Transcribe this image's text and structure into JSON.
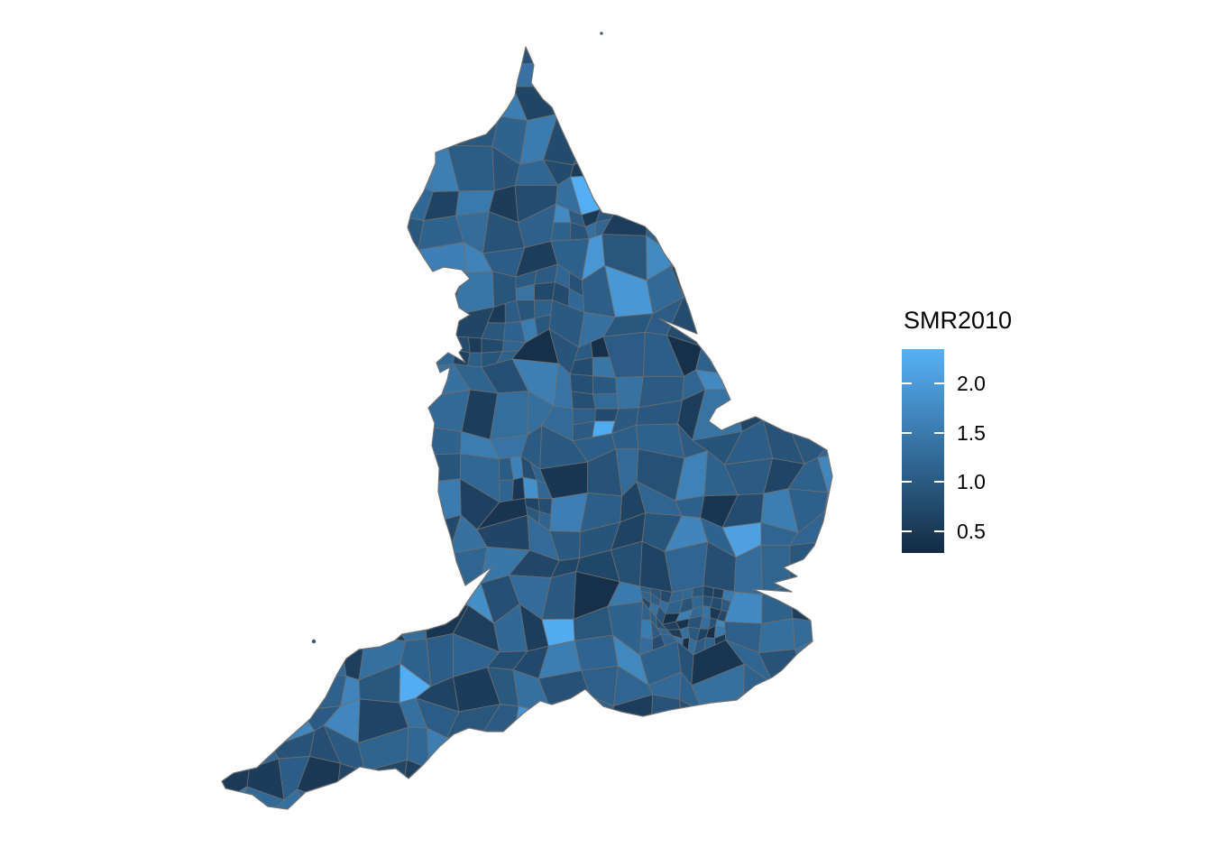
{
  "figure": {
    "background_color": "#FFFFFF",
    "plot_type": "choropleth map",
    "region": "England local authority districts"
  },
  "legend": {
    "title": "SMR2010",
    "ticks": [
      {
        "label": "2.0",
        "value": 2.0
      },
      {
        "label": "1.5",
        "value": 1.5
      },
      {
        "label": "1.0",
        "value": 1.0
      },
      {
        "label": "0.5",
        "value": 0.5
      }
    ],
    "scale": {
      "low_color": "#132B43",
      "high_color": "#56B1F7",
      "limit_low": 0.28,
      "limit_high": 2.35,
      "tick_mark_color": "#FFFFFF",
      "text_color": "#000000"
    }
  },
  "map": {
    "border_color": "#6E6E6E",
    "base_fill": "#27517A"
  }
}
